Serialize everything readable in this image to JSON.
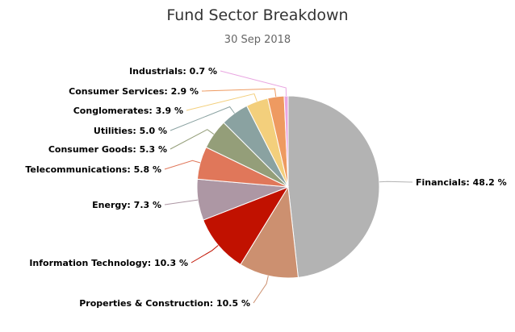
{
  "chart_data": {
    "type": "pie",
    "title": "Fund Sector Breakdown",
    "subtitle": "30 Sep 2018",
    "slices": [
      {
        "label": "Financials",
        "value": 48.2,
        "display": "Financials: 48.2 %",
        "color": "#b3b3b3"
      },
      {
        "label": "Properties & Construction",
        "value": 10.5,
        "display": "Properties & Construction: 10.5 %",
        "color": "#cc9070"
      },
      {
        "label": "Information Technology",
        "value": 10.3,
        "display": "Information Technology: 10.3 %",
        "color": "#c11100"
      },
      {
        "label": "Energy",
        "value": 7.3,
        "display": "Energy: 7.3 %",
        "color": "#ad97a4"
      },
      {
        "label": "Telecommunications",
        "value": 5.8,
        "display": "Telecommunications: 5.8 %",
        "color": "#e0775a"
      },
      {
        "label": "Consumer Goods",
        "value": 5.3,
        "display": "Consumer Goods: 5.3 %",
        "color": "#949e79"
      },
      {
        "label": "Utilities",
        "value": 5.0,
        "display": "Utilities: 5.0 %",
        "color": "#8aa2a1"
      },
      {
        "label": "Conglomerates",
        "value": 3.9,
        "display": "Conglomerates: 3.9 %",
        "color": "#f3cf7c"
      },
      {
        "label": "Consumer Services",
        "value": 2.9,
        "display": "Consumer Services: 2.9 %",
        "color": "#ee9a61"
      },
      {
        "label": "Industrials",
        "value": 0.7,
        "display": "Industrials: 0.7 %",
        "color": "#e9a6e1"
      }
    ]
  }
}
